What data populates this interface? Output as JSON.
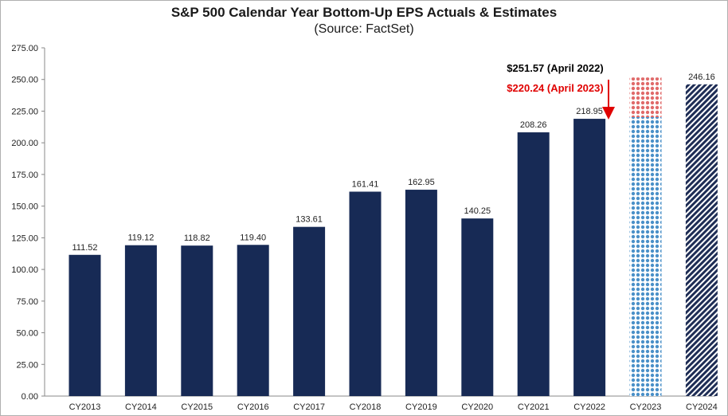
{
  "chart_data": {
    "type": "bar",
    "title": "S&P 500 Calendar Year Bottom-Up EPS Actuals & Estimates",
    "subtitle": "(Source: FactSet)",
    "categories": [
      "CY2013",
      "CY2014",
      "CY2015",
      "CY2016",
      "CY2017",
      "CY2018",
      "CY2019",
      "CY2020",
      "CY2021",
      "CY2022",
      "CY2023",
      "CY2024"
    ],
    "values": [
      111.52,
      119.12,
      118.82,
      119.4,
      133.61,
      161.41,
      162.95,
      140.25,
      208.26,
      218.95,
      220.24,
      246.16
    ],
    "value_labels": [
      "111.52",
      "119.12",
      "118.82",
      "119.40",
      "133.61",
      "161.41",
      "162.95",
      "140.25",
      "208.26",
      "218.95",
      "",
      "246.16"
    ],
    "bar_styles": [
      "actual",
      "actual",
      "actual",
      "actual",
      "actual",
      "actual",
      "actual",
      "actual",
      "actual",
      "actual",
      "estimate-dots",
      "estimate-diagonal"
    ],
    "previous_estimate": {
      "category": "CY2023",
      "value": 251.57
    },
    "annotations": [
      {
        "text": "$251.57 (April 2022)",
        "color": "#000000"
      },
      {
        "text": "$220.24 (April 2023)",
        "color": "#e00000"
      }
    ],
    "ylim": [
      0,
      275
    ],
    "yticks": [
      "0.00",
      "25.00",
      "50.00",
      "75.00",
      "100.00",
      "125.00",
      "150.00",
      "175.00",
      "200.00",
      "225.00",
      "250.00",
      "275.00"
    ],
    "grid": false,
    "legend": "none",
    "colors": {
      "actual": "#172a55",
      "estimate_dots": "#4a90c8",
      "previous_estimate_dots": "#e06a6a",
      "estimate_diagonal": "#1e2d55",
      "arrow": "#e00000"
    }
  }
}
